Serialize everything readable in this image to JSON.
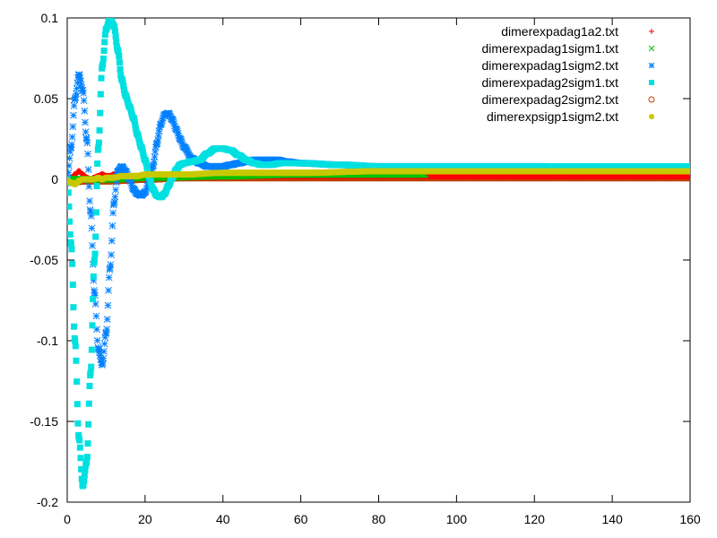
{
  "chart_data": {
    "type": "scatter",
    "title": "",
    "xlabel": "",
    "ylabel": "",
    "xlim": [
      0,
      160
    ],
    "ylim": [
      -0.2,
      0.1
    ],
    "x_ticks": [
      0,
      20,
      40,
      60,
      80,
      100,
      120,
      140,
      160
    ],
    "y_ticks": [
      -0.2,
      -0.15,
      -0.1,
      -0.05,
      0,
      0.05,
      0.1
    ],
    "x_tick_labels": [
      "0",
      "20",
      "40",
      "60",
      "80",
      "100",
      "120",
      "140",
      "160"
    ],
    "y_tick_labels": [
      "-0.2",
      "-0.15",
      "-0.1",
      "-0.05",
      "0",
      "0.05",
      "0.1"
    ],
    "grid": false,
    "legend_position": "top-right",
    "series": [
      {
        "name": "dimerexpadag1a2.txt",
        "color": "#ff0000",
        "marker": "plus",
        "points": [
          [
            0,
            0.0
          ],
          [
            1,
            0.001
          ],
          [
            2,
            0.003
          ],
          [
            3,
            0.005
          ],
          [
            4,
            0.003
          ],
          [
            5,
            0.001
          ],
          [
            6,
            0.0
          ],
          [
            7,
            0.001
          ],
          [
            8,
            0.002
          ],
          [
            9,
            0.003
          ],
          [
            10,
            0.002
          ],
          [
            11,
            0.002
          ],
          [
            12,
            0.003
          ],
          [
            14,
            0.003
          ],
          [
            16,
            0.002
          ],
          [
            20,
            0.002
          ],
          [
            30,
            0.002
          ],
          [
            40,
            0.002
          ],
          [
            60,
            0.002
          ],
          [
            80,
            0.002
          ],
          [
            100,
            0.002
          ],
          [
            120,
            0.002
          ],
          [
            140,
            0.002
          ],
          [
            160,
            0.002
          ]
        ]
      },
      {
        "name": "dimerexpadag1sigm1.txt",
        "color": "#00c000",
        "marker": "cross",
        "points": [
          [
            0,
            0.0
          ],
          [
            5,
            0.0
          ],
          [
            10,
            0.0
          ],
          [
            20,
            0.001
          ],
          [
            40,
            0.002
          ],
          [
            60,
            0.003
          ],
          [
            80,
            0.003
          ],
          [
            92,
            0.003
          ]
        ]
      },
      {
        "name": "dimerexpadag1sigm2.txt",
        "color": "#0080ff",
        "marker": "star",
        "points": [
          [
            0,
            0.0
          ],
          [
            1,
            0.02
          ],
          [
            2,
            0.05
          ],
          [
            3,
            0.065
          ],
          [
            4,
            0.055
          ],
          [
            5,
            0.025
          ],
          [
            6,
            -0.02
          ],
          [
            7,
            -0.07
          ],
          [
            8,
            -0.105
          ],
          [
            9,
            -0.115
          ],
          [
            10,
            -0.095
          ],
          [
            11,
            -0.055
          ],
          [
            12,
            -0.015
          ],
          [
            13,
            0.005
          ],
          [
            14,
            0.008
          ],
          [
            15,
            0.005
          ],
          [
            16,
            0.0
          ],
          [
            17,
            -0.006
          ],
          [
            18,
            -0.009
          ],
          [
            19,
            -0.01
          ],
          [
            20,
            -0.008
          ],
          [
            21,
            -0.002
          ],
          [
            22,
            0.008
          ],
          [
            23,
            0.022
          ],
          [
            24,
            0.034
          ],
          [
            25,
            0.04
          ],
          [
            26,
            0.041
          ],
          [
            27,
            0.037
          ],
          [
            28,
            0.031
          ],
          [
            29,
            0.025
          ],
          [
            30,
            0.02
          ],
          [
            32,
            0.013
          ],
          [
            34,
            0.01
          ],
          [
            36,
            0.008
          ],
          [
            38,
            0.008
          ],
          [
            40,
            0.008
          ],
          [
            42,
            0.009
          ],
          [
            44,
            0.01
          ],
          [
            46,
            0.011
          ],
          [
            48,
            0.012
          ],
          [
            50,
            0.012
          ],
          [
            52,
            0.012
          ],
          [
            54,
            0.012
          ],
          [
            56,
            0.011
          ],
          [
            60,
            0.01
          ],
          [
            70,
            0.009
          ],
          [
            80,
            0.008
          ],
          [
            90,
            0.008
          ],
          [
            100,
            0.008
          ],
          [
            120,
            0.008
          ],
          [
            140,
            0.007
          ],
          [
            160,
            0.007
          ]
        ]
      },
      {
        "name": "dimerexpadag2sigm1.txt",
        "color": "#00e0e0",
        "marker": "square",
        "points": [
          [
            0,
            0.0
          ],
          [
            1,
            -0.04
          ],
          [
            2,
            -0.1
          ],
          [
            3,
            -0.16
          ],
          [
            4,
            -0.19
          ],
          [
            5,
            -0.175
          ],
          [
            6,
            -0.12
          ],
          [
            7,
            -0.05
          ],
          [
            8,
            0.02
          ],
          [
            9,
            0.07
          ],
          [
            10,
            0.093
          ],
          [
            11,
            0.1
          ],
          [
            12,
            0.095
          ],
          [
            13,
            0.08
          ],
          [
            14,
            0.062
          ],
          [
            15,
            0.052
          ],
          [
            16,
            0.045
          ],
          [
            17,
            0.038
          ],
          [
            18,
            0.028
          ],
          [
            19,
            0.02
          ],
          [
            20,
            0.012
          ],
          [
            21,
            0.002
          ],
          [
            22,
            -0.006
          ],
          [
            23,
            -0.01
          ],
          [
            24,
            -0.011
          ],
          [
            25,
            -0.009
          ],
          [
            26,
            -0.004
          ],
          [
            27,
            0.001
          ],
          [
            28,
            0.006
          ],
          [
            29,
            0.009
          ],
          [
            30,
            0.01
          ],
          [
            32,
            0.011
          ],
          [
            34,
            0.012
          ],
          [
            36,
            0.016
          ],
          [
            38,
            0.019
          ],
          [
            40,
            0.019
          ],
          [
            42,
            0.018
          ],
          [
            44,
            0.015
          ],
          [
            46,
            0.012
          ],
          [
            48,
            0.01
          ],
          [
            50,
            0.009
          ],
          [
            52,
            0.009
          ],
          [
            55,
            0.01
          ],
          [
            60,
            0.01
          ],
          [
            70,
            0.009
          ],
          [
            80,
            0.008
          ],
          [
            90,
            0.008
          ],
          [
            100,
            0.008
          ],
          [
            120,
            0.008
          ],
          [
            140,
            0.008
          ],
          [
            160,
            0.008
          ]
        ]
      },
      {
        "name": "dimerexpadag2sigm2.txt",
        "color": "#c04000",
        "marker": "circle",
        "points": [
          [
            0,
            -0.002
          ],
          [
            5,
            -0.001
          ],
          [
            10,
            -0.001
          ],
          [
            20,
            0.0
          ],
          [
            30,
            0.001
          ],
          [
            40,
            0.001
          ],
          [
            60,
            0.001
          ],
          [
            80,
            0.001
          ],
          [
            100,
            0.001
          ],
          [
            120,
            0.001
          ],
          [
            140,
            0.001
          ],
          [
            160,
            0.001
          ]
        ]
      },
      {
        "name": "dimerexpsigp1sigm2.txt",
        "color": "#c8c800",
        "marker": "filled-circle",
        "points": [
          [
            0,
            -0.001
          ],
          [
            1,
            -0.002
          ],
          [
            2,
            -0.003
          ],
          [
            3,
            -0.001
          ],
          [
            4,
            0.0
          ],
          [
            5,
            0.0
          ],
          [
            6,
            0.0
          ],
          [
            7,
            0.0
          ],
          [
            8,
            0.001
          ],
          [
            9,
            0.0
          ],
          [
            10,
            0.001
          ],
          [
            12,
            0.001
          ],
          [
            14,
            0.002
          ],
          [
            16,
            0.002
          ],
          [
            18,
            0.002
          ],
          [
            20,
            0.003
          ],
          [
            30,
            0.003
          ],
          [
            40,
            0.004
          ],
          [
            60,
            0.004
          ],
          [
            80,
            0.005
          ],
          [
            100,
            0.005
          ],
          [
            120,
            0.005
          ],
          [
            140,
            0.005
          ],
          [
            160,
            0.005
          ]
        ]
      }
    ]
  }
}
